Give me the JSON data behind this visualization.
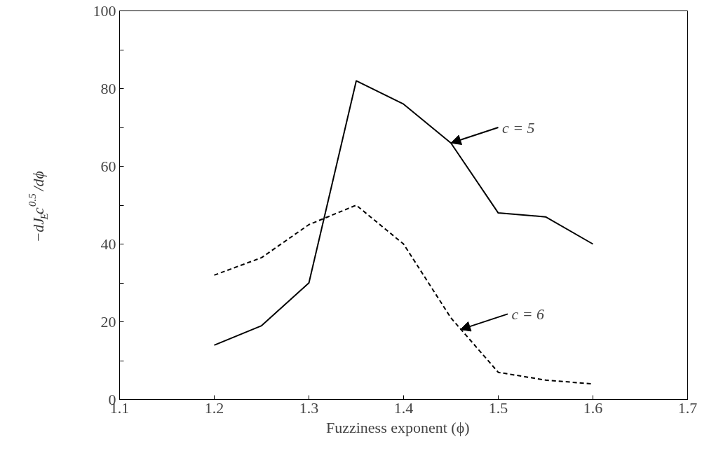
{
  "chart_data": {
    "type": "line",
    "xlabel": "Fuzziness exponent    (ϕ)",
    "ylabel": "−dJ$_{E}$c$^{0.5}$/dϕ",
    "x": [
      1.2,
      1.25,
      1.3,
      1.35,
      1.4,
      1.45,
      1.5,
      1.55,
      1.6
    ],
    "series": [
      {
        "color": "#000000",
        "line_style": "solid",
        "values": [
          14,
          19,
          30,
          82,
          76,
          66,
          48,
          47,
          40
        ]
      },
      {
        "color": "#000000",
        "line_style": "dashed",
        "values": [
          32,
          36.5,
          45,
          50,
          40,
          21,
          7,
          5,
          4
        ]
      }
    ],
    "annotations": [
      {
        "text": "c = 5",
        "x": 1.45,
        "y": 66
      },
      {
        "text": "c = 6",
        "x": 1.46,
        "y": 18
      }
    ],
    "xlim": [
      1.1,
      1.7
    ],
    "xticks": [
      1.1,
      1.2,
      1.3,
      1.4,
      1.5,
      1.6,
      1.7
    ],
    "ylim": [
      0,
      100
    ],
    "yticks": [
      0,
      {
        "value": 10,
        "label": null
      },
      20,
      {
        "value": 30,
        "label": null
      },
      40,
      {
        "value": 50,
        "label": null
      },
      60,
      {
        "value": 70,
        "label": null
      },
      80,
      {
        "value": 90,
        "label": null
      },
      100
    ],
    "grid": false,
    "marker": "none"
  }
}
